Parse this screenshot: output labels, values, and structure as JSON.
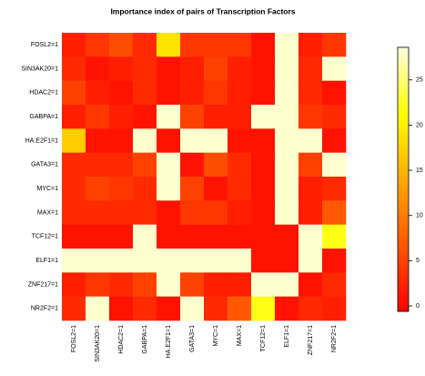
{
  "chart_data": {
    "type": "heatmap",
    "title": "Importance index of pairs of Transcription Factors",
    "row_categories": [
      "FOSL2=1",
      "SIN3AK20=1",
      "HDAC2=1",
      "GABPA=1",
      "HA.E2F1=1",
      "GATA3=1",
      "MYC=1",
      "MAX=1",
      "TCF12=1",
      "ELF1=1",
      "ZNF217=1",
      "NR2F2=1"
    ],
    "column_categories": [
      "FOSL2=1",
      "SIN3AK20=1",
      "HDAC2=1",
      "GABPA=1",
      "HA.E2F1=1",
      "GATA3=1",
      "MYC=1",
      "MAX=1",
      "TCF12=1",
      "ELF1=1",
      "ZNF217=1",
      "NR2F2=1"
    ],
    "values": [
      [
        2,
        4,
        6,
        3,
        19,
        4,
        4,
        4,
        1,
        28,
        2,
        4
      ],
      [
        3,
        1,
        2,
        3,
        1,
        2,
        5,
        2,
        1,
        28,
        3,
        28
      ],
      [
        5,
        2,
        1,
        3,
        1,
        2,
        4,
        2,
        1,
        28,
        3,
        1
      ],
      [
        2,
        4,
        2,
        1,
        28,
        5,
        2,
        2,
        28,
        28,
        4,
        3
      ],
      [
        17,
        1,
        1,
        28,
        1,
        28,
        28,
        1,
        1,
        28,
        28,
        1
      ],
      [
        3,
        3,
        3,
        5,
        28,
        1,
        6,
        3,
        1,
        28,
        5,
        28
      ],
      [
        3,
        5,
        4,
        3,
        28,
        5,
        1,
        3,
        1,
        28,
        2,
        3
      ],
      [
        3,
        3,
        3,
        3,
        1,
        4,
        4,
        2,
        1,
        28,
        2,
        7
      ],
      [
        1,
        1,
        1,
        28,
        1,
        1,
        1,
        1,
        1,
        1,
        28,
        22
      ],
      [
        28,
        28,
        28,
        28,
        28,
        28,
        28,
        28,
        1,
        1,
        28,
        1
      ],
      [
        2,
        4,
        3,
        5,
        28,
        5,
        2,
        2,
        28,
        28,
        1,
        3
      ],
      [
        3,
        28,
        1,
        3,
        1,
        28,
        3,
        7,
        22,
        1,
        3,
        2
      ]
    ],
    "colormap": "heat",
    "zlim": [
      -0.6,
      28.6
    ],
    "zticks": [
      0,
      5,
      10,
      15,
      20,
      25
    ]
  }
}
